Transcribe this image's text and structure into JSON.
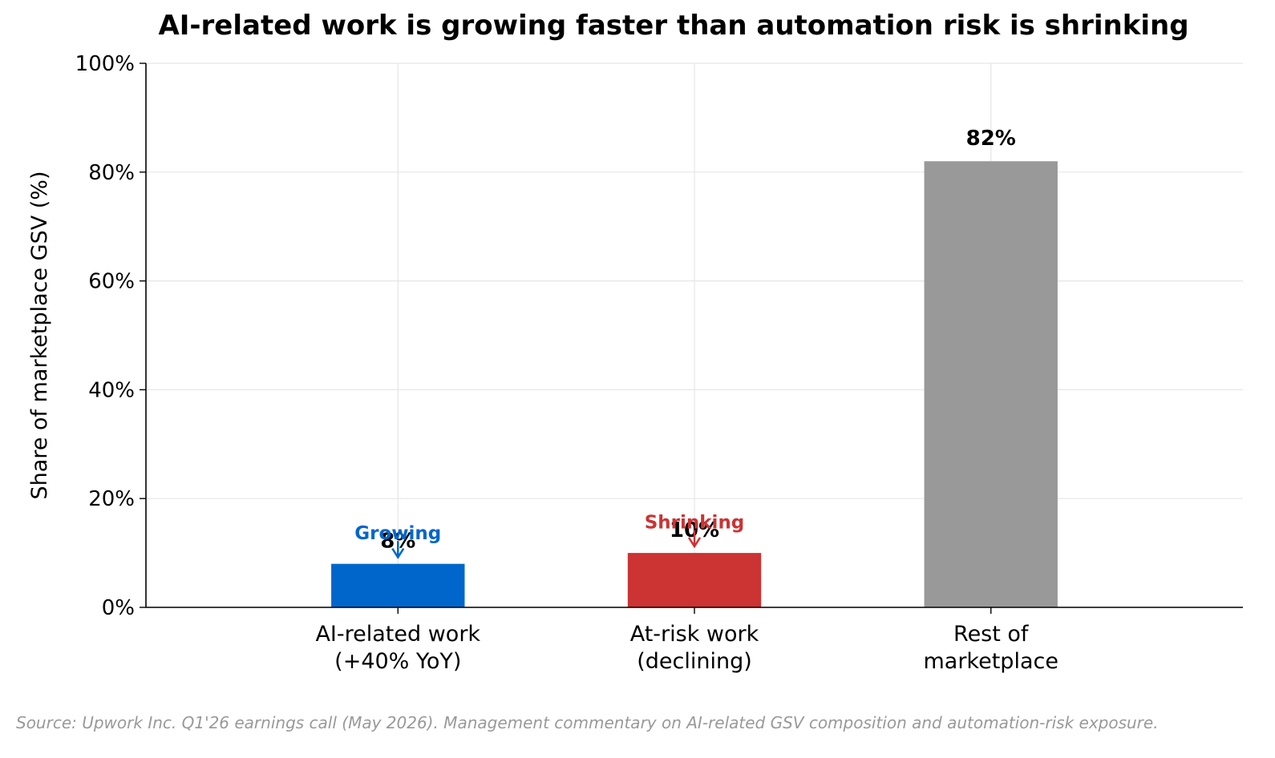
{
  "chart_data": {
    "type": "bar",
    "title": "AI-related work is growing faster than automation risk is shrinking",
    "ylabel": "Share of marketplace GSV (%)",
    "xlabel": "",
    "ylim": [
      0,
      100
    ],
    "yticks": [
      "0%",
      "20%",
      "40%",
      "60%",
      "80%",
      "100%"
    ],
    "ytick_values": [
      0,
      20,
      40,
      60,
      80,
      100
    ],
    "categories": [
      [
        "AI-related work",
        "(+40% YoY)"
      ],
      [
        "At-risk work",
        "(declining)"
      ],
      [
        "Rest of",
        "marketplace"
      ]
    ],
    "values": [
      8,
      10,
      82
    ],
    "value_labels": [
      "8%",
      "10%",
      "82%"
    ],
    "colors": [
      "#0066cc",
      "#cc3333",
      "#999999"
    ],
    "grid": true,
    "annotations": [
      {
        "bar": 0,
        "text": "Growing",
        "color": "#0066cc",
        "arrow": "down",
        "arrow_from": 12.2,
        "arrow_to": 9.2
      },
      {
        "bar": 1,
        "text": "Shrinking",
        "color": "#cc3333",
        "arrow": "down",
        "arrow_from": 14.2,
        "arrow_to": 11.2
      }
    ]
  },
  "source_note": "Source: Upwork Inc. Q1'26 earnings call (May 2026). Management commentary on AI-related GSV composition and automation-risk exposure."
}
